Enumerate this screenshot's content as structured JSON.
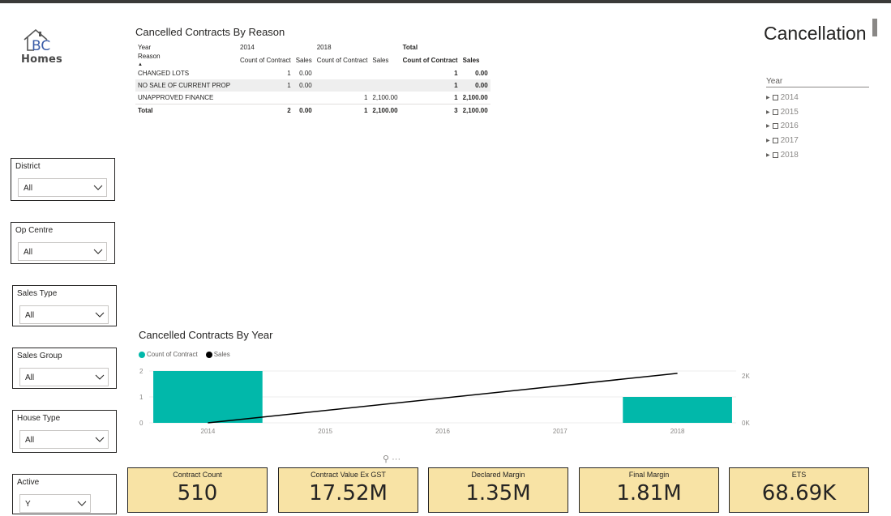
{
  "brand": {
    "logo_letters": "BC",
    "logo_word": "Homes"
  },
  "page_title": "Cancellation",
  "slicers": [
    {
      "label": "District",
      "value": "All"
    },
    {
      "label": "Op Centre",
      "value": "All"
    },
    {
      "label": "Sales Type",
      "value": "All"
    },
    {
      "label": "Sales Group",
      "value": "All"
    },
    {
      "label": "House Type",
      "value": "All"
    },
    {
      "label": "Active",
      "value": "Y"
    }
  ],
  "year_filter": {
    "label": "Year",
    "items": [
      "2014",
      "2015",
      "2016",
      "2017",
      "2018"
    ]
  },
  "reason_table": {
    "title": "Cancelled Contracts By Reason",
    "row1": {
      "year": "Year",
      "y2014": "2014",
      "y2018": "2018",
      "total": "Total"
    },
    "row2": {
      "reason": "Reason",
      "count": "Count of Contract",
      "sales": "Sales"
    },
    "rows": [
      {
        "reason": "CHANGED LOTS",
        "c14": "1",
        "s14": "0.00",
        "c18": "",
        "s18": "",
        "ct": "1",
        "st": "0.00"
      },
      {
        "reason": "NO SALE OF CURRENT PROP",
        "c14": "1",
        "s14": "0.00",
        "c18": "",
        "s18": "",
        "ct": "1",
        "st": "0.00"
      },
      {
        "reason": "UNAPPROVED FINANCE",
        "c14": "",
        "s14": "",
        "c18": "1",
        "s18": "2,100.00",
        "ct": "1",
        "st": "2,100.00"
      }
    ],
    "total": {
      "label": "Total",
      "c14": "2",
      "s14": "0.00",
      "c18": "1",
      "s18": "2,100.00",
      "ct": "3",
      "st": "2,100.00"
    }
  },
  "year_chart": {
    "title": "Cancelled Contracts By Year",
    "legend": [
      "Count of Contract",
      "Sales"
    ]
  },
  "chart_data": {
    "type": "bar",
    "categories": [
      "2014",
      "2015",
      "2016",
      "2017",
      "2018"
    ],
    "series": [
      {
        "name": "Count of Contract",
        "type": "bar",
        "axis": "left",
        "color": "#01b8aa",
        "values": [
          2,
          null,
          null,
          null,
          1
        ]
      },
      {
        "name": "Sales",
        "type": "line",
        "axis": "right",
        "color": "#000000",
        "values": [
          0,
          null,
          null,
          null,
          2100
        ]
      }
    ],
    "y_left": {
      "range": [
        0,
        2
      ],
      "ticks": [
        "0",
        "1",
        "2"
      ]
    },
    "y_right": {
      "range": [
        0,
        2200
      ],
      "ticks": [
        "0K",
        "2K"
      ]
    },
    "grid": true
  },
  "cards": [
    {
      "title": "Contract Count",
      "value": "510"
    },
    {
      "title": "Contract Value Ex GST",
      "value": "17.52M"
    },
    {
      "title": "Declared Margin",
      "value": "1.35M"
    },
    {
      "title": "Final Margin",
      "value": "1.81M"
    },
    {
      "title": "ETS",
      "value": "68.69K"
    }
  ]
}
